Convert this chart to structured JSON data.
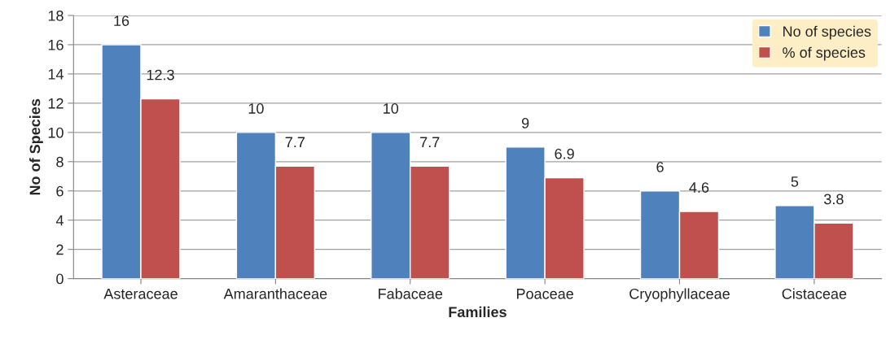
{
  "chart_data": {
    "type": "bar",
    "xlabel": "Families",
    "ylabel": "No of Species",
    "categories": [
      "Asteraceae",
      "Amaranthaceae",
      "Fabaceae",
      "Poaceae",
      "Cryophyllaceae",
      "Cistaceae"
    ],
    "series": [
      {
        "name": "No of species",
        "color": "#4f81bd",
        "values": [
          16,
          10,
          10,
          9,
          6,
          5
        ]
      },
      {
        "name": "% of species",
        "color": "#c0504d",
        "values": [
          12.3,
          7.7,
          7.7,
          6.9,
          4.6,
          3.8
        ]
      }
    ],
    "ylim": [
      0,
      18
    ],
    "yticks": [
      0,
      2,
      4,
      6,
      8,
      10,
      12,
      14,
      16,
      18
    ],
    "grid": "y",
    "legend": "top right",
    "data_labels": true
  }
}
